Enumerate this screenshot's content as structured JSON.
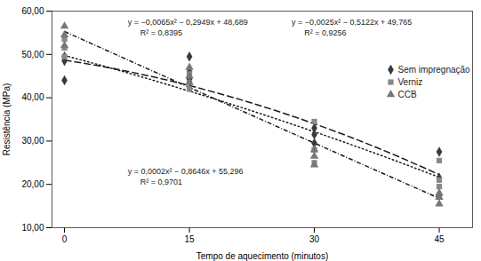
{
  "chart_data": {
    "type": "scatter",
    "xlabel": "Tempo de aquecimento (minutos)",
    "ylabel": "Resistência (MPa)",
    "xlim": [
      -1.5,
      49
    ],
    "ylim": [
      10,
      60
    ],
    "xticks": [
      0,
      15,
      30,
      45
    ],
    "yticks": [
      {
        "value": 10.0,
        "label": "10,00"
      },
      {
        "value": 20.0,
        "label": "20,00"
      },
      {
        "value": 30.0,
        "label": "30,00"
      },
      {
        "value": 40.0,
        "label": "40,00"
      },
      {
        "value": 50.0,
        "label": "50,00"
      },
      {
        "value": 60.0,
        "label": "60,00"
      }
    ],
    "grid": false,
    "legend": "upper right",
    "series": [
      {
        "name": "Sem impregnação",
        "color": "#3a3a3a",
        "marker": "diamond",
        "x": [
          0,
          0,
          0,
          15,
          15,
          15,
          30,
          30,
          30,
          45,
          45,
          45
        ],
        "values": [
          44.0,
          48.5,
          49.5,
          44.3,
          46.0,
          49.5,
          29.5,
          31.5,
          33.0,
          17.5,
          21.5,
          27.5
        ],
        "fit": {
          "type": "line",
          "color": "#1a1a1a",
          "line_style": "dashed",
          "x": [
            0,
            5,
            10,
            15,
            20,
            25,
            30,
            35,
            40,
            45
          ],
          "values": [
            48.689,
            47.052,
            45.09,
            42.803,
            40.191,
            37.254,
            33.992,
            30.405,
            26.493,
            22.256
          ]
        }
      },
      {
        "name": "Verniz",
        "color": "#888888",
        "marker": "square",
        "x": [
          0,
          0,
          0,
          15,
          15,
          15,
          30,
          30,
          30,
          45,
          45,
          45
        ],
        "values": [
          49.5,
          51.5,
          53.5,
          42.0,
          43.5,
          45.5,
          25.0,
          28.0,
          34.5,
          19.5,
          21.0,
          25.5
        ],
        "fit": {
          "type": "line",
          "color": "#1a1a1a",
          "line_style": "dotted",
          "x": [
            0,
            5,
            10,
            15,
            20,
            25,
            30,
            35,
            40,
            45
          ],
          "values": [
            49.765,
            47.1415,
            44.393,
            41.5195,
            38.521,
            35.3975,
            32.149,
            28.7755,
            25.277,
            21.6535
          ]
        }
      },
      {
        "name": "CCB",
        "color": "#777777",
        "marker": "triangle",
        "x": [
          0,
          0,
          0,
          15,
          15,
          15,
          30,
          30,
          30,
          45,
          45,
          45
        ],
        "values": [
          52.0,
          54.5,
          56.5,
          43.5,
          45.0,
          47.0,
          24.5,
          26.5,
          28.0,
          15.5,
          17.0,
          18.0
        ],
        "fit": {
          "type": "line",
          "color": "#1a1a1a",
          "line_style": "dashdot",
          "x": [
            0,
            5,
            10,
            15,
            20,
            25,
            30,
            35,
            40,
            45
          ],
          "values": [
            55.296,
            50.978,
            46.67,
            42.372,
            38.084,
            33.806,
            29.538,
            25.28,
            21.032,
            16.794
          ]
        }
      }
    ],
    "annotations": [
      {
        "text": "y = −0,0065x² − 0,2949x + 48,689",
        "x": 7.59,
        "y": 57.5
      },
      {
        "text": "R² = 0,8395",
        "x": 9.105,
        "y": 55.0
      },
      {
        "text": "y = −0,0025x² − 0,5122x + 49,765",
        "x": 27.285,
        "y": 57.5
      },
      {
        "text": "R² = 0,9256",
        "x": 28.8,
        "y": 55.0
      },
      {
        "text": "y = 0,0002x² − 0,8646x + 55,296",
        "x": 7.59,
        "y": 23.0
      },
      {
        "text": "R² = 0,9701",
        "x": 9.105,
        "y": 20.5
      }
    ]
  }
}
